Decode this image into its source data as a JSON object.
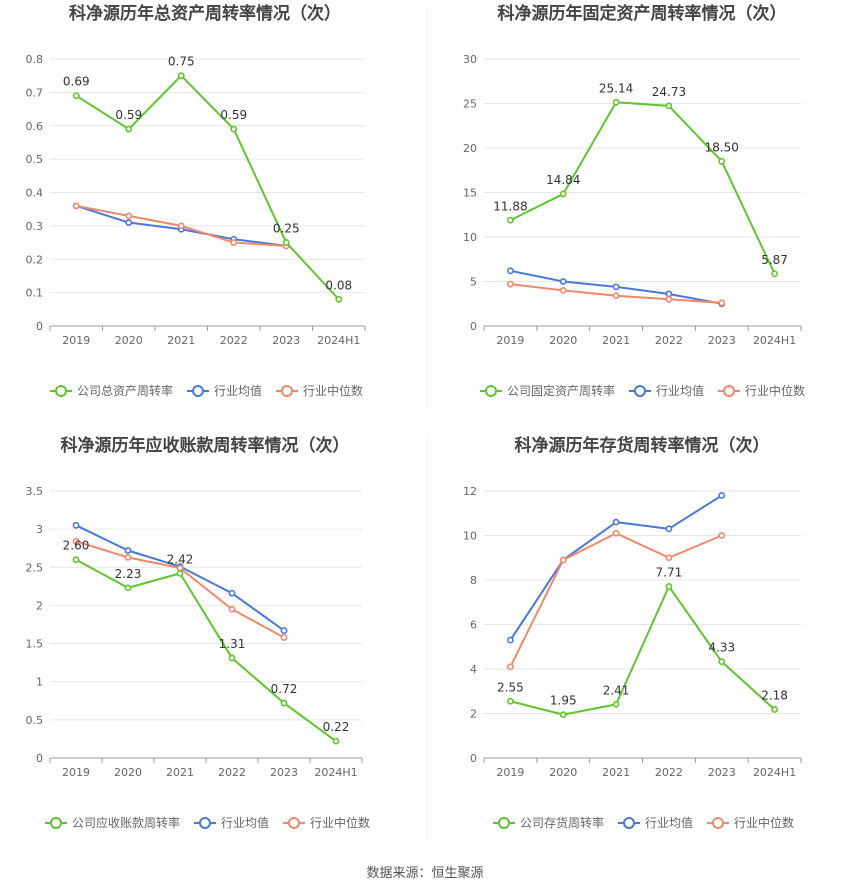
{
  "footer": "数据来源：恒生聚源",
  "colors": {
    "company": "#5fc52e",
    "average": "#4a78d8",
    "median": "#f0896a",
    "grid": "#e6e6e6",
    "axis": "#999999",
    "text": "#666666",
    "title": "#444444"
  },
  "chart_data": [
    {
      "type": "line",
      "title": "科净源历年总资产周转率情况（次）",
      "categories": [
        "2019",
        "2020",
        "2021",
        "2022",
        "2023",
        "2024H1"
      ],
      "yticks": [
        "0",
        "0.1",
        "0.2",
        "0.3",
        "0.4",
        "0.5",
        "0.6",
        "0.7",
        "0.8"
      ],
      "ylim": [
        0,
        0.8
      ],
      "series": [
        {
          "name": "公司总资产周转率",
          "role": "company",
          "values": [
            0.69,
            0.59,
            0.75,
            0.59,
            0.25,
            0.08
          ],
          "labels": [
            "0.69",
            "0.59",
            "0.75",
            "0.59",
            "0.25",
            "0.08"
          ]
        },
        {
          "name": "行业均值",
          "role": "average",
          "values": [
            0.36,
            0.31,
            0.29,
            0.26,
            0.24,
            null
          ]
        },
        {
          "name": "行业中位数",
          "role": "median",
          "values": [
            0.36,
            0.33,
            0.3,
            0.25,
            0.24,
            null
          ]
        }
      ],
      "legend": "bottom"
    },
    {
      "type": "line",
      "title": "科净源历年固定资产周转率情况（次）",
      "categories": [
        "2019",
        "2020",
        "2021",
        "2022",
        "2023",
        "2024H1"
      ],
      "yticks": [
        "0",
        "5",
        "10",
        "15",
        "20",
        "25",
        "30"
      ],
      "ylim": [
        0,
        30
      ],
      "series": [
        {
          "name": "公司固定资产周转率",
          "role": "company",
          "values": [
            11.88,
            14.84,
            25.14,
            24.73,
            18.5,
            5.87
          ],
          "labels": [
            "11.88",
            "14.84",
            "25.14",
            "24.73",
            "18.50",
            "5.87"
          ]
        },
        {
          "name": "行业均值",
          "role": "average",
          "values": [
            6.2,
            5.0,
            4.4,
            3.6,
            2.5,
            null
          ]
        },
        {
          "name": "行业中位数",
          "role": "median",
          "values": [
            4.7,
            4.0,
            3.4,
            3.0,
            2.6,
            null
          ]
        }
      ],
      "legend": "bottom"
    },
    {
      "type": "line",
      "title": "科净源历年应收账款周转率情况（次）",
      "categories": [
        "2019",
        "2020",
        "2021",
        "2022",
        "2023",
        "2024H1"
      ],
      "yticks": [
        "0",
        "0.5",
        "1",
        "1.5",
        "2",
        "2.5",
        "3",
        "3.5"
      ],
      "ylim": [
        0,
        3.5
      ],
      "series": [
        {
          "name": "公司应收账款周转率",
          "role": "company",
          "values": [
            2.6,
            2.23,
            2.42,
            1.31,
            0.72,
            0.22
          ],
          "labels": [
            "2.60",
            "2.23",
            "2.42",
            "1.31",
            "0.72",
            "0.22"
          ]
        },
        {
          "name": "行业均值",
          "role": "average",
          "values": [
            3.05,
            2.72,
            2.51,
            2.16,
            1.67,
            null
          ]
        },
        {
          "name": "行业中位数",
          "role": "median",
          "values": [
            2.84,
            2.63,
            2.49,
            1.95,
            1.58,
            null
          ]
        }
      ],
      "legend": "bottom"
    },
    {
      "type": "line",
      "title": "科净源历年存货周转率情况（次）",
      "categories": [
        "2019",
        "2020",
        "2021",
        "2022",
        "2023",
        "2024H1"
      ],
      "yticks": [
        "0",
        "2",
        "4",
        "6",
        "8",
        "10",
        "12"
      ],
      "ylim": [
        0,
        12
      ],
      "series": [
        {
          "name": "公司存货周转率",
          "role": "company",
          "values": [
            2.55,
            1.95,
            2.41,
            7.71,
            4.33,
            2.18
          ],
          "labels": [
            "2.55",
            "1.95",
            "2.41",
            "7.71",
            "4.33",
            "2.18"
          ]
        },
        {
          "name": "行业均值",
          "role": "average",
          "values": [
            5.3,
            8.9,
            10.6,
            10.3,
            11.8,
            null
          ]
        },
        {
          "name": "行业中位数",
          "role": "median",
          "values": [
            4.1,
            8.9,
            10.1,
            9.0,
            10.0,
            null
          ]
        }
      ],
      "legend": "bottom"
    }
  ]
}
